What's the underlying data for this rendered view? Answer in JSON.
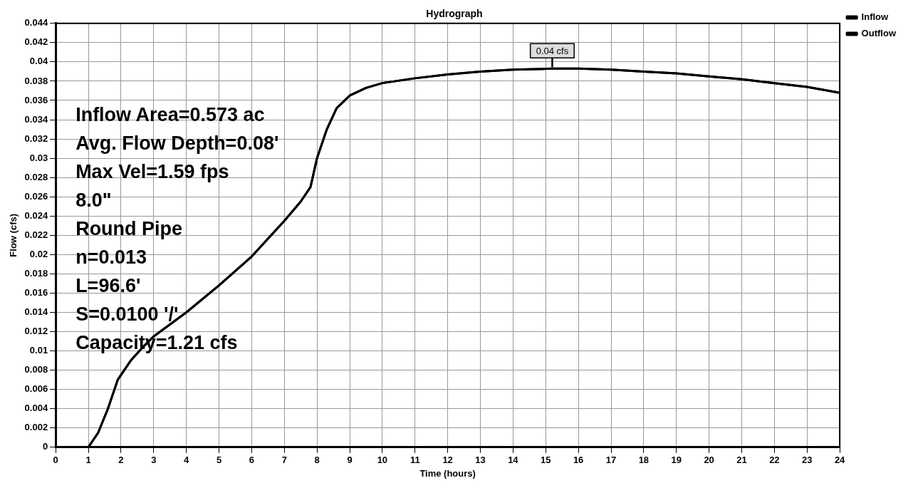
{
  "chart_data": {
    "type": "line",
    "title": "Hydrograph",
    "xlabel": "Time (hours)",
    "ylabel": "Flow (cfs)",
    "x": [
      0,
      0.5,
      1,
      1.3,
      1.6,
      1.9,
      2.3,
      2.7,
      3,
      4,
      5,
      6,
      7,
      7.5,
      7.8,
      8,
      8.3,
      8.6,
      9,
      9.5,
      10,
      11,
      12,
      13,
      14,
      15.2,
      16,
      17,
      18,
      19,
      20,
      21,
      22,
      23,
      24
    ],
    "series": [
      {
        "name": "Inflow",
        "color": "#000000",
        "values": [
          0,
          0,
          0,
          0.0015,
          0.004,
          0.007,
          0.009,
          0.0105,
          0.0115,
          0.014,
          0.0168,
          0.0198,
          0.0235,
          0.0255,
          0.027,
          0.03,
          0.033,
          0.0352,
          0.0365,
          0.0373,
          0.0378,
          0.0383,
          0.0387,
          0.039,
          0.0392,
          0.0393,
          0.0393,
          0.0392,
          0.039,
          0.0388,
          0.0385,
          0.0382,
          0.0378,
          0.0374,
          0.0368
        ]
      },
      {
        "name": "Outflow",
        "color": "#000000",
        "values": [
          0,
          0,
          0,
          0.0015,
          0.004,
          0.007,
          0.009,
          0.0105,
          0.0115,
          0.014,
          0.0168,
          0.0198,
          0.0235,
          0.0255,
          0.027,
          0.03,
          0.033,
          0.0352,
          0.0365,
          0.0373,
          0.0378,
          0.0383,
          0.0387,
          0.039,
          0.0392,
          0.0393,
          0.0393,
          0.0392,
          0.039,
          0.0388,
          0.0385,
          0.0382,
          0.0378,
          0.0374,
          0.0368
        ]
      }
    ],
    "xlim": [
      0,
      24
    ],
    "xticks": [
      0,
      1,
      2,
      3,
      4,
      5,
      6,
      7,
      8,
      9,
      10,
      11,
      12,
      13,
      14,
      15,
      16,
      17,
      18,
      19,
      20,
      21,
      22,
      23,
      24
    ],
    "ylim": [
      0,
      0.044
    ],
    "yticks": [
      0,
      0.002,
      0.004,
      0.006,
      0.008,
      0.01,
      0.012,
      0.014,
      0.016,
      0.018,
      0.02,
      0.022,
      0.024,
      0.026,
      0.028,
      0.03,
      0.032,
      0.034,
      0.036,
      0.038,
      0.04,
      0.042,
      0.044
    ],
    "grid": true,
    "legend": "top right",
    "marker": "none",
    "line_style": "solid",
    "annotations": [
      {
        "text": "0.04 cfs",
        "x": 15.2,
        "y": 0.0393
      },
      "Inflow Area=0.573 ac",
      "Avg. Flow Depth=0.08'",
      "Max Vel=1.59 fps",
      "8.0\"",
      "Round Pipe",
      "n=0.013",
      "L=96.6'",
      "S=0.0100 '/'",
      "Capacity=1.21 cfs"
    ]
  }
}
